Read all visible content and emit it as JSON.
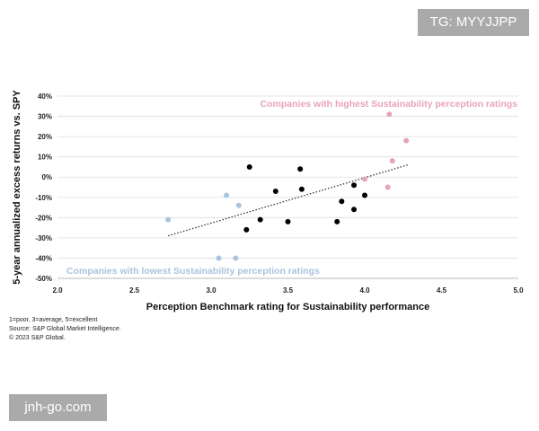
{
  "watermarks": {
    "top": "TG: MYYJJPP",
    "bottom": "jnh-go.com"
  },
  "chart_data": {
    "type": "scatter",
    "title": "",
    "xlabel": "Perception Benchmark rating for Sustainability performance",
    "ylabel": "5-year annualized excess returns vs. SPY",
    "xlim": [
      2.0,
      5.0
    ],
    "ylim": [
      -50,
      40
    ],
    "x_ticks": [
      2.0,
      2.5,
      3.0,
      3.5,
      4.0,
      4.5,
      5.0
    ],
    "x_tick_labels": [
      "2.0",
      "2.5",
      "3.0",
      "3.5",
      "4.0",
      "4.5",
      "5.0"
    ],
    "y_ticks": [
      40,
      30,
      20,
      10,
      0,
      -10,
      -20,
      -30,
      -40,
      -50
    ],
    "y_tick_labels": [
      "40%",
      "30%",
      "20%",
      "10%",
      "0%",
      "-10%",
      "-20%",
      "-30%",
      "-40%",
      "-50%"
    ],
    "grid": "horizontal",
    "colors": {
      "highest": "#e8a3bb",
      "lowest": "#a9c4dd",
      "middle": "#000000",
      "trend": "#333333",
      "grid": "#dddddd"
    },
    "series": [
      {
        "group": "highest",
        "color": "#e8a3bb",
        "points": [
          [
            4.16,
            31
          ],
          [
            4.27,
            18
          ],
          [
            4.18,
            8
          ],
          [
            4.0,
            -1
          ],
          [
            4.15,
            -5
          ]
        ]
      },
      {
        "group": "lowest",
        "color": "#a9c4dd",
        "points": [
          [
            2.72,
            -21
          ],
          [
            3.1,
            -9
          ],
          [
            3.18,
            -14
          ],
          [
            3.05,
            -40
          ],
          [
            3.16,
            -40
          ]
        ]
      },
      {
        "group": "middle",
        "color": "#000000",
        "points": [
          [
            3.25,
            5
          ],
          [
            3.58,
            4
          ],
          [
            3.93,
            -4
          ],
          [
            3.42,
            -7
          ],
          [
            3.59,
            -6
          ],
          [
            3.85,
            -12
          ],
          [
            4.0,
            -9
          ],
          [
            3.93,
            -16
          ],
          [
            3.32,
            -21
          ],
          [
            3.5,
            -22
          ],
          [
            3.23,
            -26
          ],
          [
            3.82,
            -22
          ]
        ]
      }
    ],
    "trendline": {
      "from": [
        2.72,
        -29
      ],
      "to": [
        4.28,
        6
      ]
    },
    "annotations": {
      "highest": "Companies with highest Sustainability perception ratings",
      "lowest": "Companies with lowest Sustainability perception ratings"
    },
    "notes": [
      "1=poor, 3=average, 5=excellent",
      "Source: S&P Global Market Intelligence.",
      "© 2023 S&P Global."
    ]
  }
}
